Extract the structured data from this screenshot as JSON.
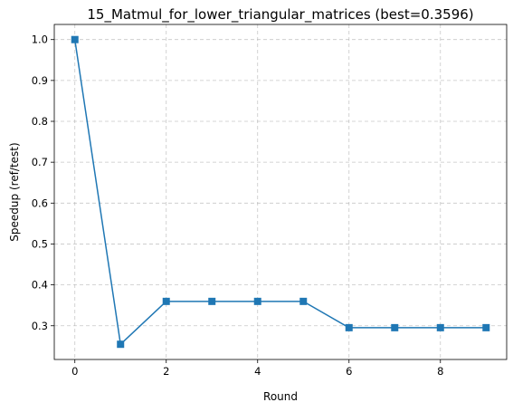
{
  "chart_data": {
    "type": "line",
    "title": "15_Matmul_for_lower_triangular_matrices (best=0.3596)",
    "xlabel": "Round",
    "ylabel": "Speedup (ref/test)",
    "x": [
      0,
      1,
      2,
      3,
      4,
      5,
      6,
      7,
      8,
      9
    ],
    "series": [
      {
        "values": [
          1.0,
          0.2547,
          0.3596,
          0.3596,
          0.3596,
          0.3596,
          0.2953,
          0.2953,
          0.2953,
          0.2953
        ],
        "color": "#1f77b4",
        "marker": "square"
      }
    ],
    "xlim": [
      -0.45,
      9.45
    ],
    "ylim": [
      0.2175,
      1.037
    ],
    "xticks": [
      0,
      2,
      4,
      6,
      8
    ],
    "yticks": [
      0.3,
      0.4,
      0.5,
      0.6,
      0.7,
      0.8,
      0.9,
      1.0
    ],
    "xtick_labels": [
      "0",
      "2",
      "4",
      "6",
      "8"
    ],
    "ytick_labels": [
      "0.3",
      "0.4",
      "0.5",
      "0.6",
      "0.7",
      "0.8",
      "0.9",
      "1.0"
    ],
    "grid": true,
    "grid_style": "dashed",
    "legend": "none"
  }
}
